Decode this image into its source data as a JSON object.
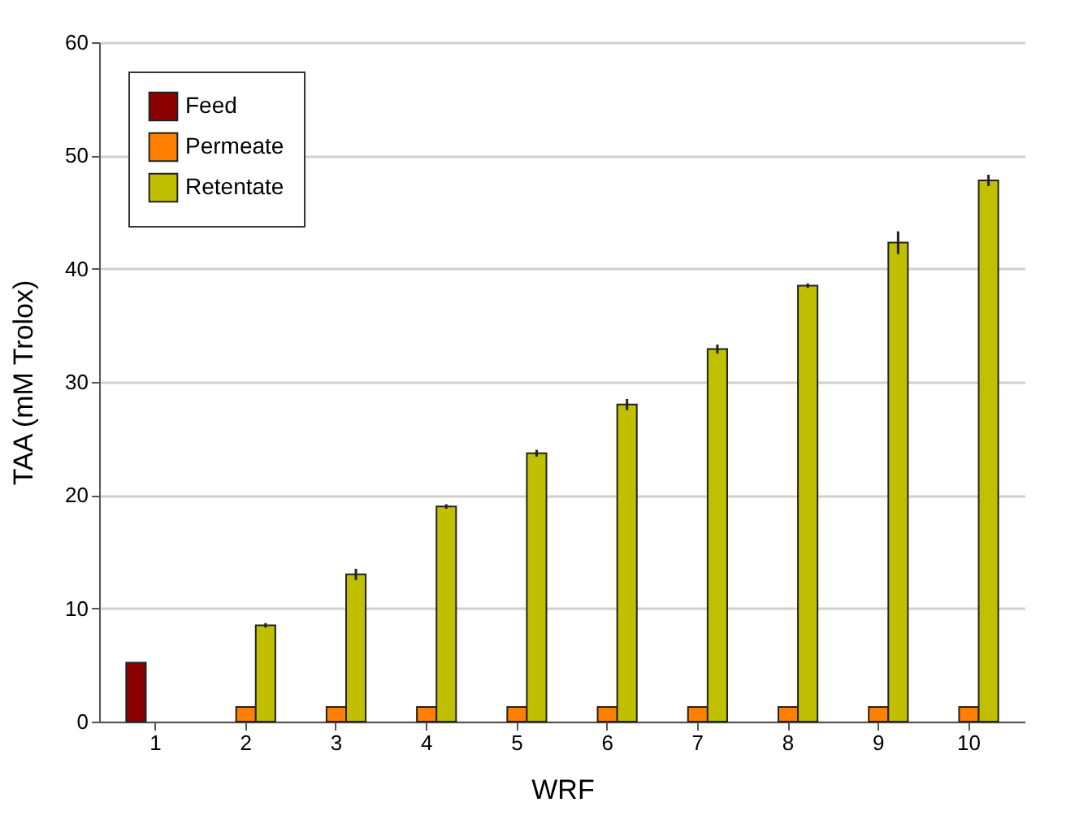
{
  "chart_data": {
    "type": "bar",
    "xlabel": "WRF",
    "ylabel": "TAA (mM Trolox)",
    "categories": [
      "1",
      "2",
      "3",
      "4",
      "5",
      "6",
      "7",
      "8",
      "9",
      "10"
    ],
    "series": [
      {
        "name": "Feed",
        "color": "#8b0000",
        "values": [
          5.2,
          null,
          null,
          null,
          null,
          null,
          null,
          null,
          null,
          null
        ]
      },
      {
        "name": "Permeate",
        "color": "#ff8000",
        "values": [
          null,
          1.3,
          1.3,
          1.3,
          1.3,
          1.3,
          1.3,
          1.3,
          1.3,
          1.3
        ]
      },
      {
        "name": "Retentate",
        "color": "#c0c000",
        "values": [
          null,
          8.5,
          13.0,
          19.0,
          23.7,
          28.0,
          32.9,
          38.5,
          42.3,
          47.8
        ],
        "errors": [
          null,
          0.2,
          0.5,
          0.2,
          0.3,
          0.5,
          0.4,
          0.2,
          1.0,
          0.5
        ]
      }
    ],
    "ylim": [
      0,
      60
    ],
    "yticks": [
      0,
      10,
      20,
      30,
      40,
      50,
      60
    ],
    "grid": "y",
    "legend": "top left"
  }
}
